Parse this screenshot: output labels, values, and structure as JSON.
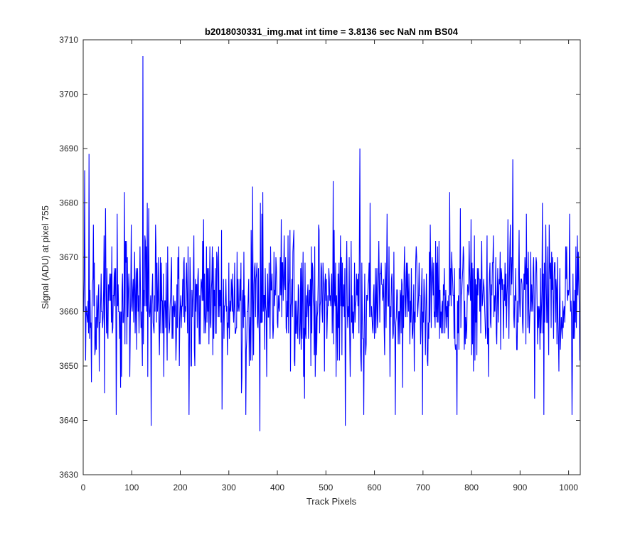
{
  "chart_data": {
    "type": "line",
    "title": "b2018030331_img.mat int time = 3.8136 sec  NaN nm BS04",
    "xlabel": "Track Pixels",
    "ylabel": "Signal (ADU) at pixel 755",
    "xlim": [
      0,
      1024
    ],
    "ylim": [
      3630,
      3710
    ],
    "xticks": [
      0,
      100,
      200,
      300,
      400,
      500,
      600,
      700,
      800,
      900,
      1000
    ],
    "yticks": [
      3630,
      3640,
      3650,
      3660,
      3670,
      3680,
      3690,
      3700,
      3710
    ],
    "grid": false,
    "legend": "none",
    "series": [
      {
        "color": "#0000ff",
        "x_start": 1,
        "x_step": 1,
        "baseline": 3662,
        "spikes": [
          {
            "x": 3,
            "y": 3686
          },
          {
            "x": 5,
            "y": 3651
          },
          {
            "x": 12,
            "y": 3689
          },
          {
            "x": 17,
            "y": 3647
          },
          {
            "x": 46,
            "y": 3679
          },
          {
            "x": 44,
            "y": 3645
          },
          {
            "x": 68,
            "y": 3641
          },
          {
            "x": 77,
            "y": 3646
          },
          {
            "x": 85,
            "y": 3682
          },
          {
            "x": 96,
            "y": 3648
          },
          {
            "x": 123,
            "y": 3707
          },
          {
            "x": 140,
            "y": 3639
          },
          {
            "x": 218,
            "y": 3641
          },
          {
            "x": 286,
            "y": 3642
          },
          {
            "x": 335,
            "y": 3641
          },
          {
            "x": 349,
            "y": 3683
          },
          {
            "x": 364,
            "y": 3638
          },
          {
            "x": 370,
            "y": 3682
          },
          {
            "x": 515,
            "y": 3684
          },
          {
            "x": 540,
            "y": 3639
          },
          {
            "x": 570,
            "y": 3690
          },
          {
            "x": 578,
            "y": 3641
          },
          {
            "x": 643,
            "y": 3641
          },
          {
            "x": 699,
            "y": 3641
          },
          {
            "x": 755,
            "y": 3682
          },
          {
            "x": 770,
            "y": 3641
          },
          {
            "x": 777,
            "y": 3679
          },
          {
            "x": 885,
            "y": 3688
          },
          {
            "x": 930,
            "y": 3644
          },
          {
            "x": 949,
            "y": 3641
          },
          {
            "x": 1002,
            "y": 3678
          },
          {
            "x": 1007,
            "y": 3641
          }
        ]
      }
    ]
  }
}
